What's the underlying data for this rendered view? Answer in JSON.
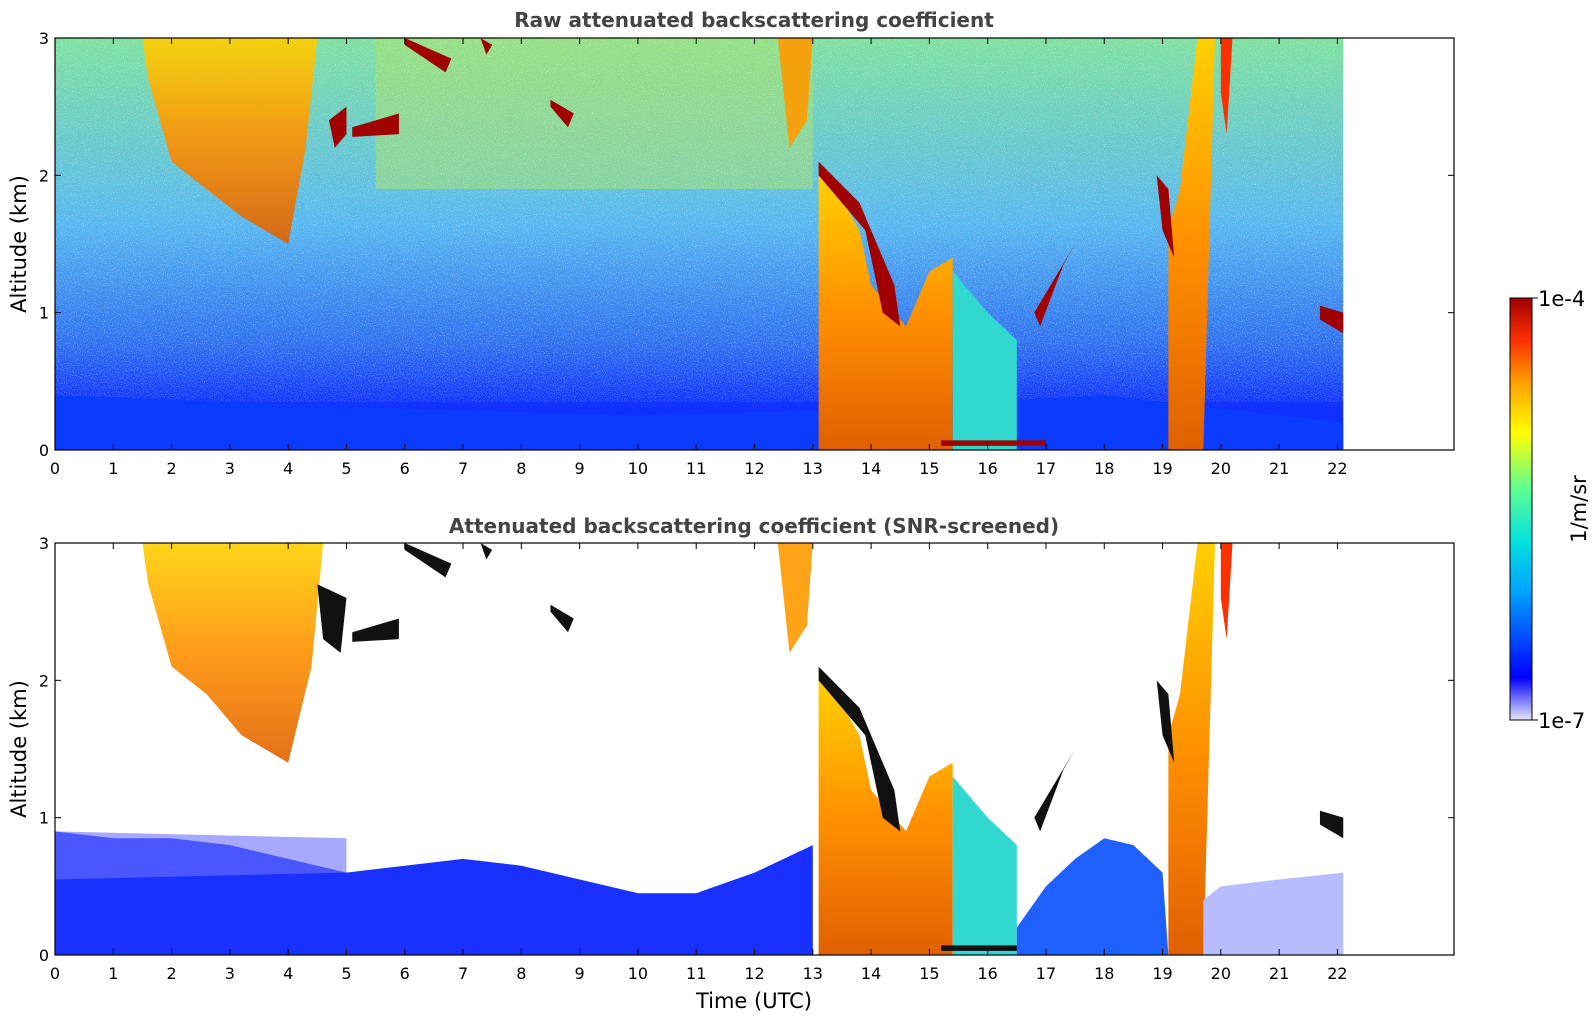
{
  "chart_data": [
    {
      "type": "heatmap",
      "title": "Raw attenuated backscattering coefficient",
      "xlabel": "",
      "ylabel": "Altitude (km)",
      "xlim": [
        0,
        24
      ],
      "ylim": [
        0,
        3
      ],
      "xticks": [
        0,
        1,
        2,
        3,
        4,
        5,
        6,
        7,
        8,
        9,
        10,
        11,
        12,
        13,
        14,
        15,
        16,
        17,
        18,
        19,
        20,
        21,
        22
      ],
      "yticks": [
        0,
        1,
        2,
        3
      ],
      "data_end_hour": 22.1,
      "features": [
        {
          "kind": "cirrus",
          "x": [
            1.5,
            4.5
          ],
          "y": [
            1.5,
            3.0
          ]
        },
        {
          "kind": "cloud-layer",
          "x": [
            5.1,
            5.9
          ],
          "y": [
            2.3,
            2.5
          ]
        },
        {
          "kind": "cloud-layer",
          "x": [
            6.0,
            6.8
          ],
          "y": [
            2.75,
            3.0
          ]
        },
        {
          "kind": "precipitation",
          "x": [
            12.4,
            13.0
          ],
          "y": [
            2.3,
            3.0
          ]
        },
        {
          "kind": "cloud-column",
          "x": [
            13.1,
            15.4
          ],
          "y": [
            0.0,
            1.9
          ]
        },
        {
          "kind": "surface-layer",
          "x": [
            15.2,
            17.0
          ],
          "y": [
            0.03,
            0.07
          ]
        },
        {
          "kind": "cloud-column",
          "x": [
            19.1,
            19.7
          ],
          "y": [
            0.0,
            3.0
          ]
        },
        {
          "kind": "cloud-layer",
          "x": [
            21.7,
            22.1
          ],
          "y": [
            0.85,
            1.1
          ]
        }
      ]
    },
    {
      "type": "heatmap",
      "title": "Attenuated backscattering coefficient (SNR-screened)",
      "xlabel": "Time (UTC)",
      "ylabel": "Altitude (km)",
      "xlim": [
        0,
        24
      ],
      "ylim": [
        0,
        3
      ],
      "xticks": [
        0,
        1,
        2,
        3,
        4,
        5,
        6,
        7,
        8,
        9,
        10,
        11,
        12,
        13,
        14,
        15,
        16,
        17,
        18,
        19,
        20,
        21,
        22
      ],
      "yticks": [
        0,
        1,
        2,
        3
      ],
      "data_end_hour": 22.1,
      "screened": true
    }
  ],
  "colorbar": {
    "min_label": "1e-7",
    "max_label": "1e-4",
    "unit": "1/m/sr",
    "scale": "log",
    "colormap": [
      "#e6e6fa",
      "#0000ff",
      "#00a0ff",
      "#00e0e0",
      "#60ff90",
      "#ffff00",
      "#ffa000",
      "#ff3000",
      "#a00000"
    ]
  }
}
